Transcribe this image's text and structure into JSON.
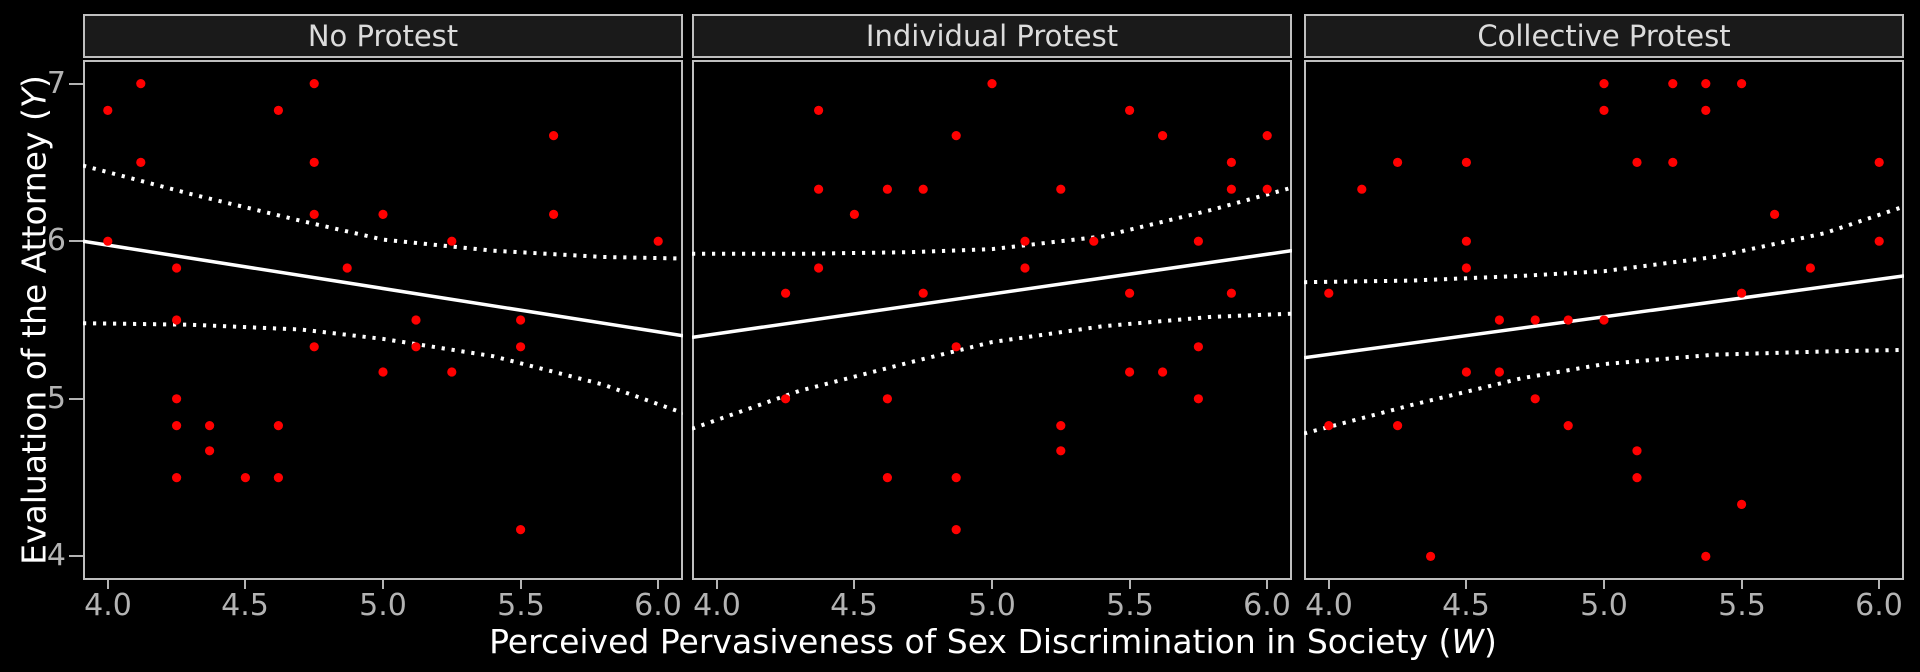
{
  "figure": {
    "background": "#000000",
    "point_color": "#ff0000",
    "line_color": "#ffffff",
    "axis_text_color": "#b3b3b3",
    "axis_title_color": "#ffffff",
    "strip_fill": "#1a1a1a",
    "strip_text_color": "#dcdcdc",
    "panel_border_color": "#bfbfbf"
  },
  "chart_data": {
    "type": "scatter",
    "title": "",
    "grid": "off",
    "legend": "none",
    "xlabel": {
      "prefix": "Perceived Pervasiveness of Sex Discrimination in Society (",
      "var": "W",
      "suffix": ")"
    },
    "ylabel": {
      "prefix": "Evaluation of the Attorney (",
      "var": "Y",
      "suffix": ")"
    },
    "x_domain": [
      3.91,
      6.09
    ],
    "y_domain": [
      3.85,
      7.15
    ],
    "x_ticks": [
      {
        "value": 4.0,
        "label": "4.0"
      },
      {
        "value": 4.5,
        "label": "4.5"
      },
      {
        "value": 5.0,
        "label": "5.0"
      },
      {
        "value": 5.5,
        "label": "5.5"
      },
      {
        "value": 6.0,
        "label": "6.0"
      }
    ],
    "y_ticks": [
      {
        "value": 7,
        "label": "7"
      },
      {
        "value": 6,
        "label": "6"
      },
      {
        "value": 5,
        "label": "5"
      },
      {
        "value": 4,
        "label": "4"
      }
    ],
    "facets": [
      {
        "label": "No Protest",
        "points": [
          [
            4.12,
            7
          ],
          [
            4.75,
            7
          ],
          [
            4.0,
            6.83
          ],
          [
            4.62,
            6.83
          ],
          [
            5.62,
            6.67
          ],
          [
            4.12,
            6.5
          ],
          [
            4.75,
            6.5
          ],
          [
            4.75,
            6.17
          ],
          [
            5.0,
            6.17
          ],
          [
            5.62,
            6.17
          ],
          [
            4.0,
            6.0
          ],
          [
            5.25,
            6.0
          ],
          [
            6.0,
            6.0
          ],
          [
            4.25,
            5.83
          ],
          [
            4.87,
            5.83
          ],
          [
            4.25,
            5.5
          ],
          [
            5.12,
            5.5
          ],
          [
            5.5,
            5.5
          ],
          [
            4.75,
            5.33
          ],
          [
            5.12,
            5.33
          ],
          [
            5.5,
            5.33
          ],
          [
            5.0,
            5.17
          ],
          [
            5.25,
            5.17
          ],
          [
            4.25,
            5.0
          ],
          [
            4.25,
            4.83
          ],
          [
            4.37,
            4.83
          ],
          [
            4.62,
            4.83
          ],
          [
            4.37,
            4.67
          ],
          [
            4.25,
            4.5
          ],
          [
            4.5,
            4.5
          ],
          [
            4.62,
            4.5
          ],
          [
            5.5,
            4.17
          ]
        ],
        "fit_line": [
          [
            3.91,
            6.0
          ],
          [
            6.09,
            5.4
          ]
        ],
        "ci_upper": [
          [
            3.91,
            6.48
          ],
          [
            4.3,
            6.3
          ],
          [
            4.7,
            6.13
          ],
          [
            5.0,
            6.01
          ],
          [
            5.4,
            5.94
          ],
          [
            5.8,
            5.9
          ],
          [
            6.09,
            5.89
          ]
        ],
        "ci_lower": [
          [
            3.91,
            5.48
          ],
          [
            4.3,
            5.47
          ],
          [
            4.7,
            5.44
          ],
          [
            5.0,
            5.38
          ],
          [
            5.4,
            5.27
          ],
          [
            5.8,
            5.09
          ],
          [
            6.09,
            4.91
          ]
        ]
      },
      {
        "label": "Individual Protest",
        "points": [
          [
            5.0,
            7.0
          ],
          [
            4.37,
            6.83
          ],
          [
            5.5,
            6.83
          ],
          [
            4.87,
            6.67
          ],
          [
            5.62,
            6.67
          ],
          [
            6.0,
            6.67
          ],
          [
            5.87,
            6.5
          ],
          [
            4.37,
            6.33
          ],
          [
            4.62,
            6.33
          ],
          [
            4.75,
            6.33
          ],
          [
            5.25,
            6.33
          ],
          [
            5.87,
            6.33
          ],
          [
            6.0,
            6.33
          ],
          [
            4.5,
            6.17
          ],
          [
            5.12,
            6.0
          ],
          [
            5.37,
            6.0
          ],
          [
            5.75,
            6.0
          ],
          [
            4.37,
            5.83
          ],
          [
            5.12,
            5.83
          ],
          [
            4.25,
            5.67
          ],
          [
            4.75,
            5.67
          ],
          [
            5.5,
            5.67
          ],
          [
            5.87,
            5.67
          ],
          [
            4.87,
            5.33
          ],
          [
            5.75,
            5.33
          ],
          [
            5.5,
            5.17
          ],
          [
            5.62,
            5.17
          ],
          [
            4.25,
            5.0
          ],
          [
            4.62,
            5.0
          ],
          [
            5.75,
            5.0
          ],
          [
            5.25,
            4.83
          ],
          [
            5.25,
            4.67
          ],
          [
            4.62,
            4.5
          ],
          [
            4.87,
            4.5
          ],
          [
            4.87,
            4.17
          ]
        ],
        "fit_line": [
          [
            3.91,
            5.39
          ],
          [
            6.09,
            5.94
          ]
        ],
        "ci_upper": [
          [
            3.91,
            5.92
          ],
          [
            4.3,
            5.92
          ],
          [
            4.7,
            5.93
          ],
          [
            5.0,
            5.95
          ],
          [
            5.4,
            6.03
          ],
          [
            5.8,
            6.2
          ],
          [
            6.09,
            6.34
          ]
        ],
        "ci_lower": [
          [
            3.91,
            4.81
          ],
          [
            4.3,
            5.05
          ],
          [
            4.7,
            5.23
          ],
          [
            5.0,
            5.36
          ],
          [
            5.4,
            5.46
          ],
          [
            5.8,
            5.52
          ],
          [
            6.09,
            5.54
          ]
        ]
      },
      {
        "label": "Collective Protest",
        "points": [
          [
            5.0,
            7.0
          ],
          [
            5.25,
            7.0
          ],
          [
            5.37,
            7.0
          ],
          [
            5.5,
            7.0
          ],
          [
            5.0,
            6.83
          ],
          [
            5.37,
            6.83
          ],
          [
            4.25,
            6.5
          ],
          [
            4.5,
            6.5
          ],
          [
            5.12,
            6.5
          ],
          [
            5.25,
            6.5
          ],
          [
            6.0,
            6.5
          ],
          [
            4.12,
            6.33
          ],
          [
            5.62,
            6.17
          ],
          [
            4.5,
            6.0
          ],
          [
            6.0,
            6.0
          ],
          [
            4.5,
            5.83
          ],
          [
            5.75,
            5.83
          ],
          [
            4.0,
            5.67
          ],
          [
            5.5,
            5.67
          ],
          [
            4.62,
            5.5
          ],
          [
            4.75,
            5.5
          ],
          [
            4.87,
            5.5
          ],
          [
            5.0,
            5.5
          ],
          [
            4.5,
            5.17
          ],
          [
            4.62,
            5.17
          ],
          [
            4.75,
            5.0
          ],
          [
            4.0,
            4.83
          ],
          [
            4.25,
            4.83
          ],
          [
            4.87,
            4.83
          ],
          [
            5.12,
            4.67
          ],
          [
            5.12,
            4.5
          ],
          [
            5.5,
            4.33
          ],
          [
            4.37,
            4.0
          ],
          [
            5.37,
            4.0
          ]
        ],
        "fit_line": [
          [
            3.91,
            5.26
          ],
          [
            6.09,
            5.78
          ]
        ],
        "ci_upper": [
          [
            3.91,
            5.74
          ],
          [
            4.3,
            5.75
          ],
          [
            4.7,
            5.78
          ],
          [
            5.0,
            5.81
          ],
          [
            5.4,
            5.9
          ],
          [
            5.8,
            6.05
          ],
          [
            6.09,
            6.22
          ]
        ],
        "ci_lower": [
          [
            3.91,
            4.78
          ],
          [
            4.3,
            4.96
          ],
          [
            4.7,
            5.13
          ],
          [
            5.0,
            5.22
          ],
          [
            5.4,
            5.28
          ],
          [
            5.8,
            5.3
          ],
          [
            6.09,
            5.31
          ]
        ]
      }
    ]
  }
}
